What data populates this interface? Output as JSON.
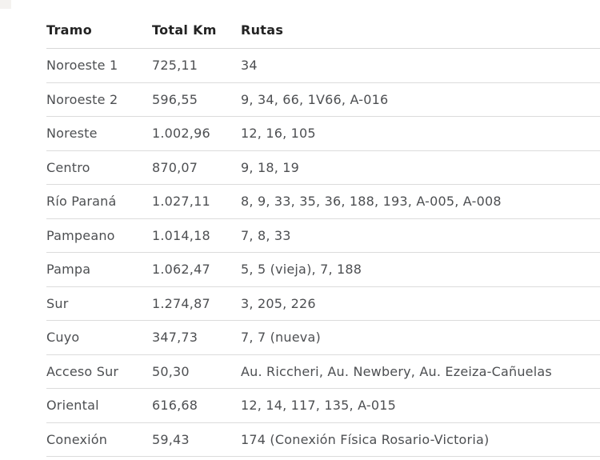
{
  "colors": {
    "background": "#ffffff",
    "header_text": "#232323",
    "body_text": "#4d4f52",
    "divider": "#dcdcdc"
  },
  "chart_data": {
    "type": "table",
    "columns": [
      {
        "key": "tramo",
        "label": "Tramo"
      },
      {
        "key": "total_km",
        "label": "Total Km"
      },
      {
        "key": "rutas",
        "label": "Rutas"
      }
    ],
    "rows": [
      {
        "tramo": "Noroeste 1",
        "total_km": "725,11",
        "rutas": "34"
      },
      {
        "tramo": "Noroeste 2",
        "total_km": "596,55",
        "rutas": "9, 34, 66, 1V66, A-016"
      },
      {
        "tramo": "Noreste",
        "total_km": "1.002,96",
        "rutas": "12, 16, 105"
      },
      {
        "tramo": "Centro",
        "total_km": "870,07",
        "rutas": "9, 18, 19"
      },
      {
        "tramo": "Río Paraná",
        "total_km": "1.027,11",
        "rutas": "8, 9, 33, 35, 36, 188, 193, A-005, A-008"
      },
      {
        "tramo": "Pampeano",
        "total_km": "1.014,18",
        "rutas": "7, 8, 33"
      },
      {
        "tramo": "Pampa",
        "total_km": "1.062,47",
        "rutas": "5, 5 (vieja), 7, 188"
      },
      {
        "tramo": "Sur",
        "total_km": "1.274,87",
        "rutas": "3, 205, 226"
      },
      {
        "tramo": "Cuyo",
        "total_km": "347,73",
        "rutas": "7, 7 (nueva)"
      },
      {
        "tramo": "Acceso Sur",
        "total_km": "50,30",
        "rutas": "Au. Riccheri, Au. Newbery, Au. Ezeiza-Cañuelas"
      },
      {
        "tramo": "Oriental",
        "total_km": "616,68",
        "rutas": "12, 14, 117, 135, A-015"
      },
      {
        "tramo": "Conexión",
        "total_km": "59,43",
        "rutas": "174 (Conexión Física Rosario-Victoria)"
      }
    ]
  }
}
